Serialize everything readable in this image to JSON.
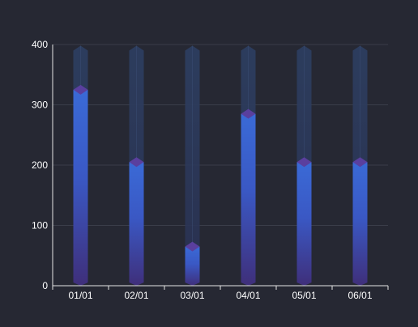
{
  "chart_data": {
    "type": "bar",
    "categories": [
      "01/01",
      "02/01",
      "03/01",
      "04/01",
      "05/01",
      "06/01"
    ],
    "series": [
      {
        "values": [
          325,
          205,
          65,
          285,
          205,
          205
        ]
      }
    ],
    "background_values": [
      390,
      390,
      390,
      390,
      390,
      390
    ],
    "ylim": [
      0,
      400
    ],
    "y_ticks": [
      0,
      100,
      200,
      300,
      400
    ],
    "grid": true,
    "colors": {
      "background": "#262833",
      "bar_top": "#3a6ad6",
      "bar_bottom": "#3f2f7a",
      "bar_cap": "#5a3f9e",
      "track": "#2a3a5c",
      "grid": "#3a3d4a",
      "axis": "#e6e6e6",
      "text": "#ffffff"
    }
  }
}
